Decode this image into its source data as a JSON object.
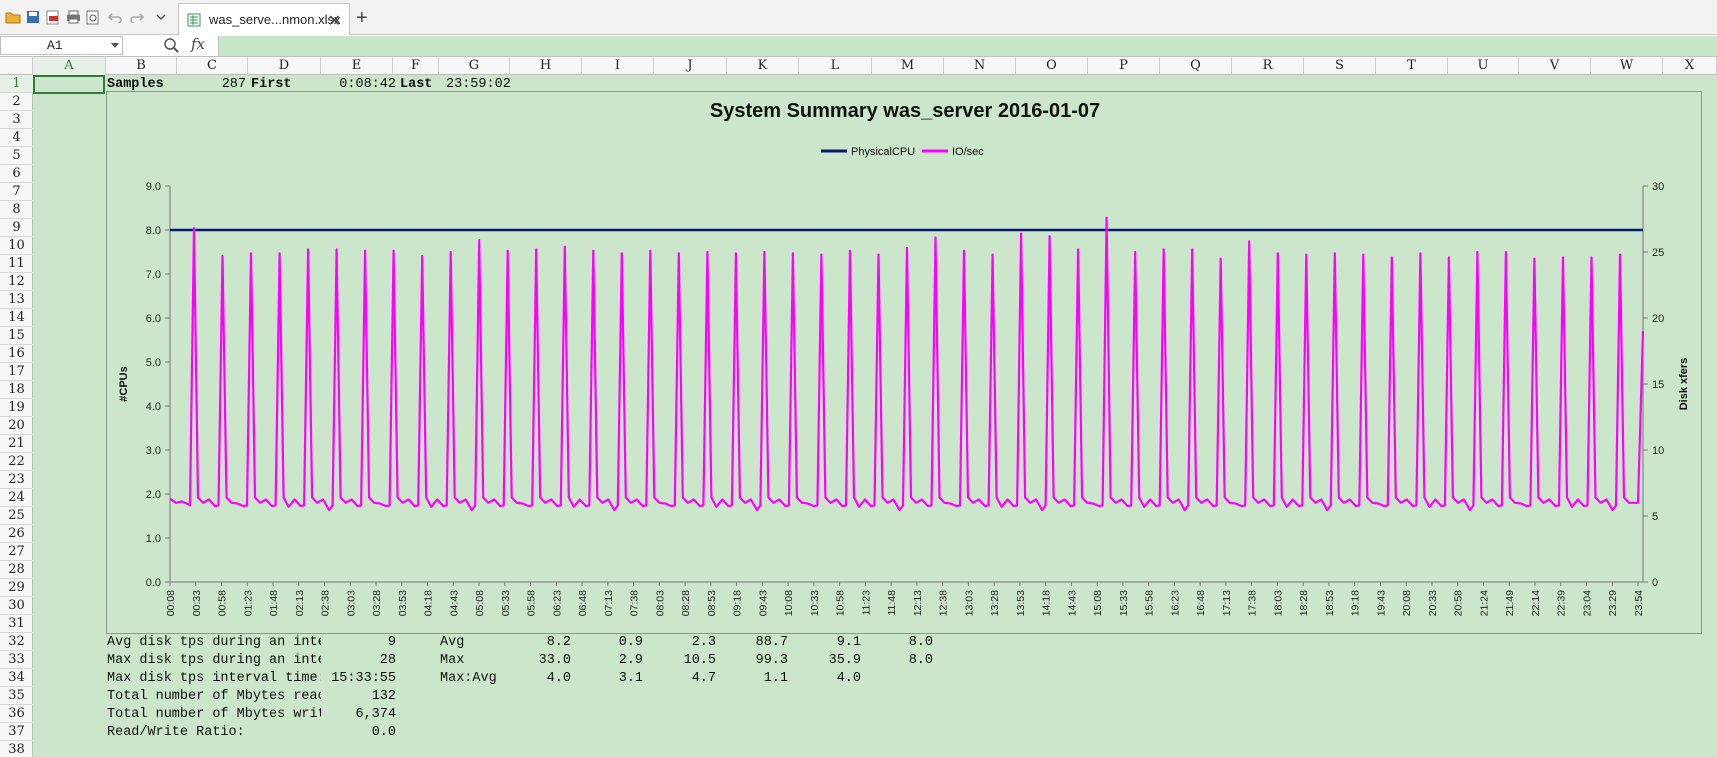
{
  "tab": {
    "filename": "was_serve...nmon.xlsx"
  },
  "formula": {
    "name_box": "A1",
    "fx": "fx"
  },
  "columns": [
    "A",
    "B",
    "C",
    "D",
    "E",
    "F",
    "G",
    "H",
    "I",
    "J",
    "K",
    "L",
    "M",
    "N",
    "O",
    "P",
    "Q",
    "R",
    "S",
    "T",
    "U",
    "V",
    "W",
    "X"
  ],
  "rows": [
    "1",
    "2",
    "3",
    "4",
    "5",
    "6",
    "7",
    "8",
    "9",
    "10",
    "11",
    "12",
    "13",
    "14",
    "15",
    "16",
    "17",
    "18",
    "19",
    "20",
    "21",
    "22",
    "23",
    "24",
    "25",
    "26",
    "27",
    "28",
    "29",
    "30",
    "31",
    "32",
    "33",
    "34",
    "35",
    "36",
    "37",
    "38"
  ],
  "row1": {
    "samples_label": "Samples",
    "samples_value": "287",
    "first_label": "First",
    "first_value": "0:08:42",
    "last_label": "Last",
    "last_value": "23:59:02"
  },
  "stats": {
    "labels": [
      "Avg disk tps during an inte",
      "Max disk tps during an inte",
      "Max disk tps interval time:",
      "Total number of Mbytes reac",
      "Total number of Mbytes writ",
      "Read/Write Ratio:"
    ],
    "values": [
      "9",
      "28",
      "15:33:55",
      "132",
      "6,374",
      "0.0"
    ]
  },
  "summary": {
    "labels": [
      "Avg",
      "Max",
      "Max:Avg"
    ],
    "rows": [
      [
        "8.2",
        "0.9",
        "2.3",
        "88.7",
        "9.1",
        "8.0"
      ],
      [
        "33.0",
        "2.9",
        "10.5",
        "99.3",
        "35.9",
        "8.0"
      ],
      [
        "4.0",
        "3.1",
        "4.7",
        "1.1",
        "4.0",
        ""
      ]
    ]
  },
  "colors": {
    "physical_cpu": "#0a1a6e",
    "io_sec": "#ff00ff",
    "background": "#cbe6cb",
    "selection": "#2e7d32"
  },
  "chart_data": {
    "type": "line",
    "title": "System Summary was_server  2016-01-07",
    "ylabel": "#CPUs",
    "y2label": "Disk xfers",
    "ylim": [
      0,
      9
    ],
    "y2lim": [
      0,
      30
    ],
    "yticks": [
      "0.0",
      "1.0",
      "2.0",
      "3.0",
      "4.0",
      "5.0",
      "6.0",
      "7.0",
      "8.0",
      "9.0"
    ],
    "y2ticks": [
      "0",
      "5",
      "10",
      "15",
      "20",
      "25",
      "30"
    ],
    "legend_placement": "top",
    "x": [
      "00:08",
      "00:33",
      "00:58",
      "01:23",
      "01:48",
      "02:13",
      "02:38",
      "03:03",
      "03:28",
      "03:53",
      "04:18",
      "04:43",
      "05:08",
      "05:33",
      "05:58",
      "06:23",
      "06:48",
      "07:13",
      "07:38",
      "08:03",
      "08:28",
      "08:53",
      "09:18",
      "09:43",
      "10:08",
      "10:33",
      "10:58",
      "11:23",
      "11:48",
      "12:13",
      "12:38",
      "13:03",
      "13:28",
      "13:53",
      "14:18",
      "14:43",
      "15:08",
      "15:33",
      "15:58",
      "16:23",
      "16:48",
      "17:13",
      "17:38",
      "18:03",
      "18:28",
      "18:53",
      "19:18",
      "19:43",
      "20:08",
      "20:33",
      "20:58",
      "21:24",
      "21:49",
      "22:14",
      "22:39",
      "23:04",
      "23:29",
      "23:54"
    ],
    "series": [
      {
        "name": "PhysicalCPU",
        "axis": "left",
        "value": 8.0
      },
      {
        "name": "IO/sec",
        "axis": "right",
        "baseline": 6.0,
        "peaks": [
          26.8,
          24.7,
          24.9,
          24.9,
          25.2,
          25.2,
          25.1,
          25.1,
          24.7,
          25.0,
          25.9,
          25.1,
          25.2,
          25.4,
          25.1,
          24.9,
          25.1,
          24.9,
          25.0,
          24.9,
          25.0,
          24.9,
          24.8,
          25.1,
          24.8,
          25.3,
          26.1,
          25.1,
          24.8,
          26.4,
          26.2,
          25.2,
          27.6,
          25.0,
          25.2,
          25.2,
          24.5,
          25.8,
          24.9,
          24.8,
          24.9,
          24.8,
          24.6,
          24.9,
          24.6,
          25.0,
          25.0,
          24.5,
          24.6,
          24.6,
          24.8
        ],
        "last": 19.0
      }
    ]
  }
}
